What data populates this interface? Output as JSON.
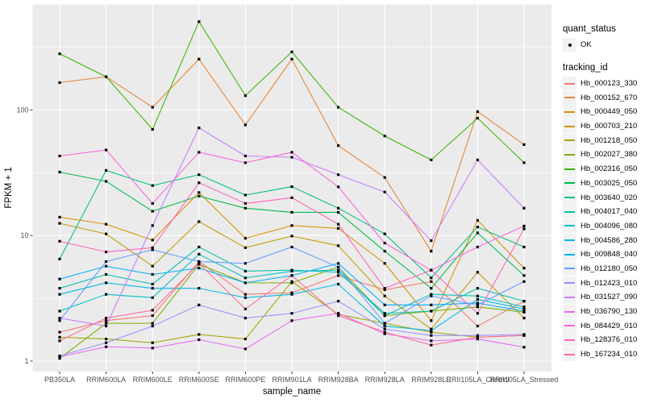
{
  "chart_data": {
    "type": "line",
    "title": "",
    "xlabel": "sample_name",
    "ylabel": "FPKM + 1",
    "y_scale": "log10",
    "ylim": [
      1,
      600
    ],
    "y_major_ticks": [
      1,
      10,
      100
    ],
    "y_major_labels": [
      "1",
      "10",
      "100"
    ],
    "y_minor_ticks": [
      3.162,
      31.62,
      316.2
    ],
    "grid": "on",
    "legend_position": "right",
    "categories": [
      "PB350LA",
      "RRIM600LA",
      "RRIM600LE",
      "RRIM600SE",
      "RRIM600PE",
      "RRIM901LA",
      "RRIM928BA",
      "RRIM928LA",
      "RRIM928LE",
      "RRII105LA_Control",
      "RRII105LA_Stressed"
    ],
    "series": [
      {
        "name": "Hb_000123_330",
        "color": "#F8766D",
        "values": [
          1.7,
          2.1,
          2.3,
          6.2,
          3.4,
          3.5,
          4.8,
          3.7,
          4.3,
          1.9,
          3.0
        ]
      },
      {
        "name": "Hb_000152_670",
        "color": "#EA8331",
        "values": [
          165,
          184,
          105,
          254,
          76,
          254,
          52,
          29,
          7.5,
          97,
          53
        ]
      },
      {
        "name": "Hb_000449_050",
        "color": "#D89000",
        "values": [
          14,
          12.3,
          9.2,
          22,
          9.5,
          12,
          11.4,
          6.0,
          2.1,
          13.2,
          5.5
        ]
      },
      {
        "name": "Hb_000703_210",
        "color": "#C09B00",
        "values": [
          12.5,
          10.3,
          5.7,
          12.9,
          8.0,
          9.9,
          8.3,
          3.3,
          1.8,
          5.1,
          2.2
        ]
      },
      {
        "name": "Hb_001218_050",
        "color": "#A3A500",
        "values": [
          1.55,
          1.5,
          1.4,
          1.63,
          1.5,
          4.3,
          2.35,
          2.0,
          1.7,
          1.55,
          1.6
        ]
      },
      {
        "name": "Hb_002027_380",
        "color": "#7CAE00",
        "values": [
          1.05,
          2.0,
          2.0,
          5.9,
          4.2,
          4.2,
          5.6,
          2.3,
          2.5,
          2.7,
          2.45
        ]
      },
      {
        "name": "Hb_002316_050",
        "color": "#39B600",
        "values": [
          280,
          184,
          70,
          505,
          130,
          290,
          105,
          62,
          40,
          86,
          38
        ]
      },
      {
        "name": "Hb_003025_050",
        "color": "#00BB4E",
        "values": [
          32,
          27,
          15.6,
          20.6,
          16.5,
          15.3,
          15.3,
          7.5,
          3.8,
          10.5,
          4.8
        ]
      },
      {
        "name": "Hb_003640_020",
        "color": "#00BF7D",
        "values": [
          6.5,
          33,
          25,
          30.5,
          21,
          24.5,
          16.5,
          10.3,
          4.6,
          11.7,
          8.1
        ]
      },
      {
        "name": "Hb_004017_040",
        "color": "#00C0AF",
        "values": [
          3.8,
          4.9,
          4.1,
          8.1,
          5.2,
          5.3,
          5.1,
          2.4,
          2.5,
          3.8,
          3.0
        ]
      },
      {
        "name": "Hb_004096_080",
        "color": "#00BFC4",
        "values": [
          2.5,
          3.4,
          3.2,
          7.1,
          4.6,
          5.2,
          5.3,
          2.3,
          3.4,
          3.3,
          2.7
        ]
      },
      {
        "name": "Hb_004586_280",
        "color": "#00B8E7",
        "values": [
          3.4,
          4.2,
          3.8,
          3.8,
          3.2,
          3.4,
          4.1,
          1.9,
          1.75,
          3.1,
          2.6
        ]
      },
      {
        "name": "Hb_009848_040",
        "color": "#00ACFC",
        "values": [
          4.5,
          5.7,
          4.9,
          5.5,
          4.2,
          4.8,
          6.0,
          2.8,
          2.8,
          2.9,
          2.5
        ]
      },
      {
        "name": "Hb_012180_050",
        "color": "#619CFF",
        "values": [
          2.1,
          6.2,
          7.7,
          6.2,
          6.0,
          8.1,
          5.6,
          2.0,
          3.3,
          2.8,
          4.3
        ]
      },
      {
        "name": "Hb_012423_010",
        "color": "#9590FF",
        "values": [
          1.1,
          1.4,
          1.9,
          2.8,
          2.2,
          2.4,
          3.0,
          1.8,
          1.6,
          1.6,
          1.63
        ]
      },
      {
        "name": "Hb_031527_090",
        "color": "#C77CFF",
        "values": [
          2.2,
          1.9,
          12,
          72,
          43,
          42,
          30.5,
          22.2,
          9.1,
          40,
          16.5
        ]
      },
      {
        "name": "Hb_036790_130",
        "color": "#E76BF3",
        "values": [
          1.08,
          1.3,
          1.27,
          1.48,
          1.25,
          2.1,
          2.4,
          1.65,
          1.45,
          1.5,
          1.29
        ]
      },
      {
        "name": "Hb_084429_010",
        "color": "#FA62DB",
        "values": [
          43,
          48,
          18,
          46,
          38,
          46,
          24.4,
          8.7,
          5.3,
          8.1,
          11.9
        ]
      },
      {
        "name": "Hb_128376_010",
        "color": "#FF62BC",
        "values": [
          9.0,
          7.4,
          8.0,
          26.3,
          18,
          20,
          12.3,
          3.8,
          5.3,
          2.4,
          11.3
        ]
      },
      {
        "name": "Hb_167234_010",
        "color": "#FF6A98",
        "values": [
          1.45,
          2.2,
          2.54,
          6.0,
          2.6,
          4.8,
          2.3,
          1.7,
          1.34,
          1.55,
          1.6
        ]
      }
    ],
    "legend": {
      "quant_status": {
        "title": "quant_status",
        "items": [
          {
            "label": "OK",
            "symbol": "point"
          }
        ]
      },
      "tracking_id": {
        "title": "tracking_id"
      }
    }
  },
  "colors": {
    "panel_background": "#EBEBEB",
    "gridline": "#FFFFFF",
    "tick_text": "#4D4D4D",
    "tick_mark": "#333333",
    "marker": "#000000",
    "legend_key": "#F2F2F2"
  }
}
